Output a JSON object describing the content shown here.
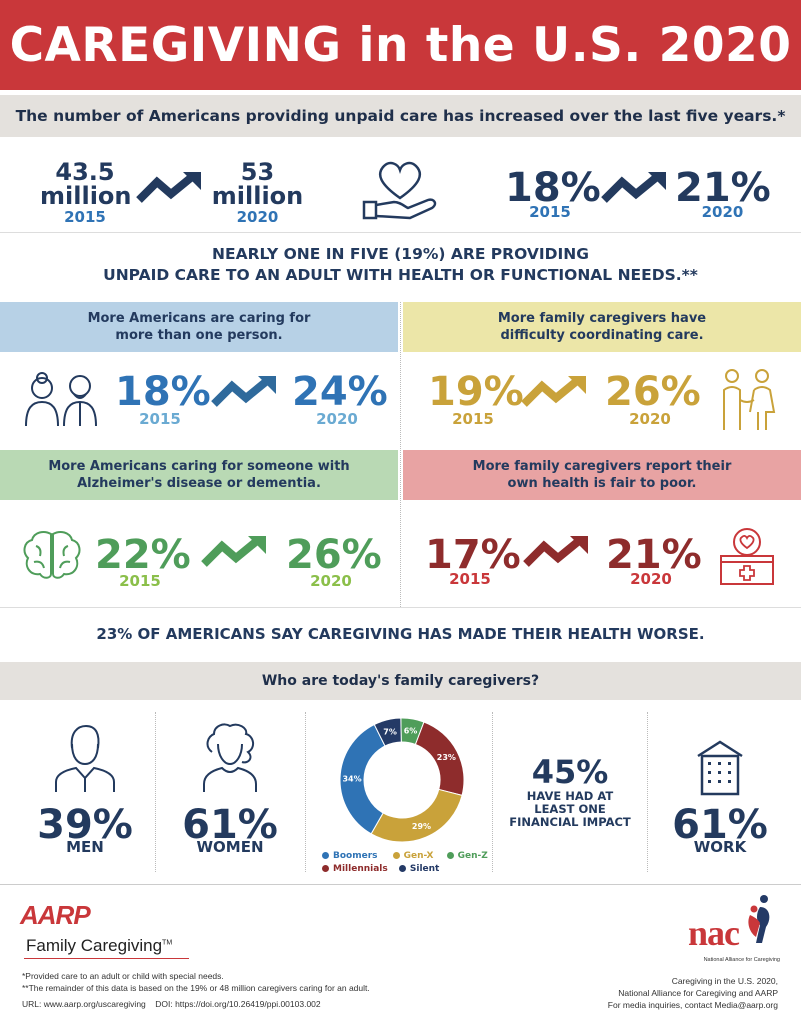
{
  "title": "CAREGIVING in the U.S. 2020",
  "subtitle": "The number of Americans providing unpaid care has increased over the last five years.*",
  "top_stats": {
    "left_2015_value": "43.5",
    "left_2015_unit": "million",
    "left_2015_year": "2015",
    "left_2020_value": "53",
    "left_2020_unit": "million",
    "left_2020_year": "2020",
    "right_2015_value": "18%",
    "right_2015_year": "2015",
    "right_2020_value": "21%",
    "right_2020_year": "2020"
  },
  "nearly_line1": "NEARLY ONE IN FIVE (19%) ARE PROVIDING",
  "nearly_line2": "UNPAID CARE TO AN ADULT WITH HEALTH OR FUNCTIONAL NEEDS.**",
  "panels": [
    {
      "heading_line1": "More Americans are caring for",
      "heading_line2": "more than one person.",
      "from": "18%",
      "from_year": "2015",
      "to": "24%",
      "to_year": "2020"
    },
    {
      "heading_line1": "More family caregivers have",
      "heading_line2": "difficulty coordinating care.",
      "from": "19%",
      "from_year": "2015",
      "to": "26%",
      "to_year": "2020"
    },
    {
      "heading_line1": "More Americans caring for someone with",
      "heading_line2": "Alzheimer's disease or dementia.",
      "from": "22%",
      "from_year": "2015",
      "to": "26%",
      "to_year": "2020"
    },
    {
      "heading_line1": "More family caregivers report their",
      "heading_line2": "own health is fair to poor.",
      "from": "17%",
      "from_year": "2015",
      "to": "21%",
      "to_year": "2020"
    }
  ],
  "health_worse": "23% OF AMERICANS SAY CAREGIVING HAS MADE THEIR HEALTH WORSE.",
  "who_heading": "Who are today's family caregivers?",
  "demographics": {
    "men_value": "39%",
    "men_label": "MEN",
    "women_value": "61%",
    "women_label": "WOMEN",
    "financial_value": "45%",
    "financial_line1": "HAVE HAD AT",
    "financial_line2": "LEAST ONE",
    "financial_line3": "FINANCIAL IMPACT",
    "work_value": "61%",
    "work_label": "WORK"
  },
  "chart_data": {
    "type": "pie",
    "categories": [
      "Boomers",
      "Gen-X",
      "Gen-Z",
      "Millennials",
      "Silent"
    ],
    "values": [
      34,
      29,
      6,
      23,
      7
    ],
    "labels": [
      "34%",
      "29%",
      "6%",
      "23%",
      "7%"
    ],
    "colors": [
      "#2f73b5",
      "#c9a23a",
      "#4f9d5a",
      "#8e2c2c",
      "#243a66"
    ]
  },
  "footer": {
    "aarp": "AARP",
    "family_caregiving": "Family Caregiving",
    "tm": "TM",
    "note1": "*Provided care to an adult or child with special needs.",
    "note2": "**The remainder of this data is based on the 19% or 48 million caregivers caring for an adult.",
    "url": "URL: www.aarp.org/uscaregiving",
    "doi": "DOI: https://doi.org/10.26419/ppi.00103.002",
    "nac": "nac",
    "nac_full": "National Alliance for Caregiving",
    "right1": "Caregiving in the U.S. 2020,",
    "right2": "National Alliance for Caregiving and AARP",
    "right3": "For media inquiries, contact Media@aarp.org"
  },
  "colors": {
    "red": "#c9373a",
    "navy": "#233a5e",
    "blue": "#2f73b5",
    "light_blue": "#6aaad2",
    "gold": "#c9a23a",
    "green": "#4f9d5a",
    "maroon": "#8e2c2c"
  }
}
